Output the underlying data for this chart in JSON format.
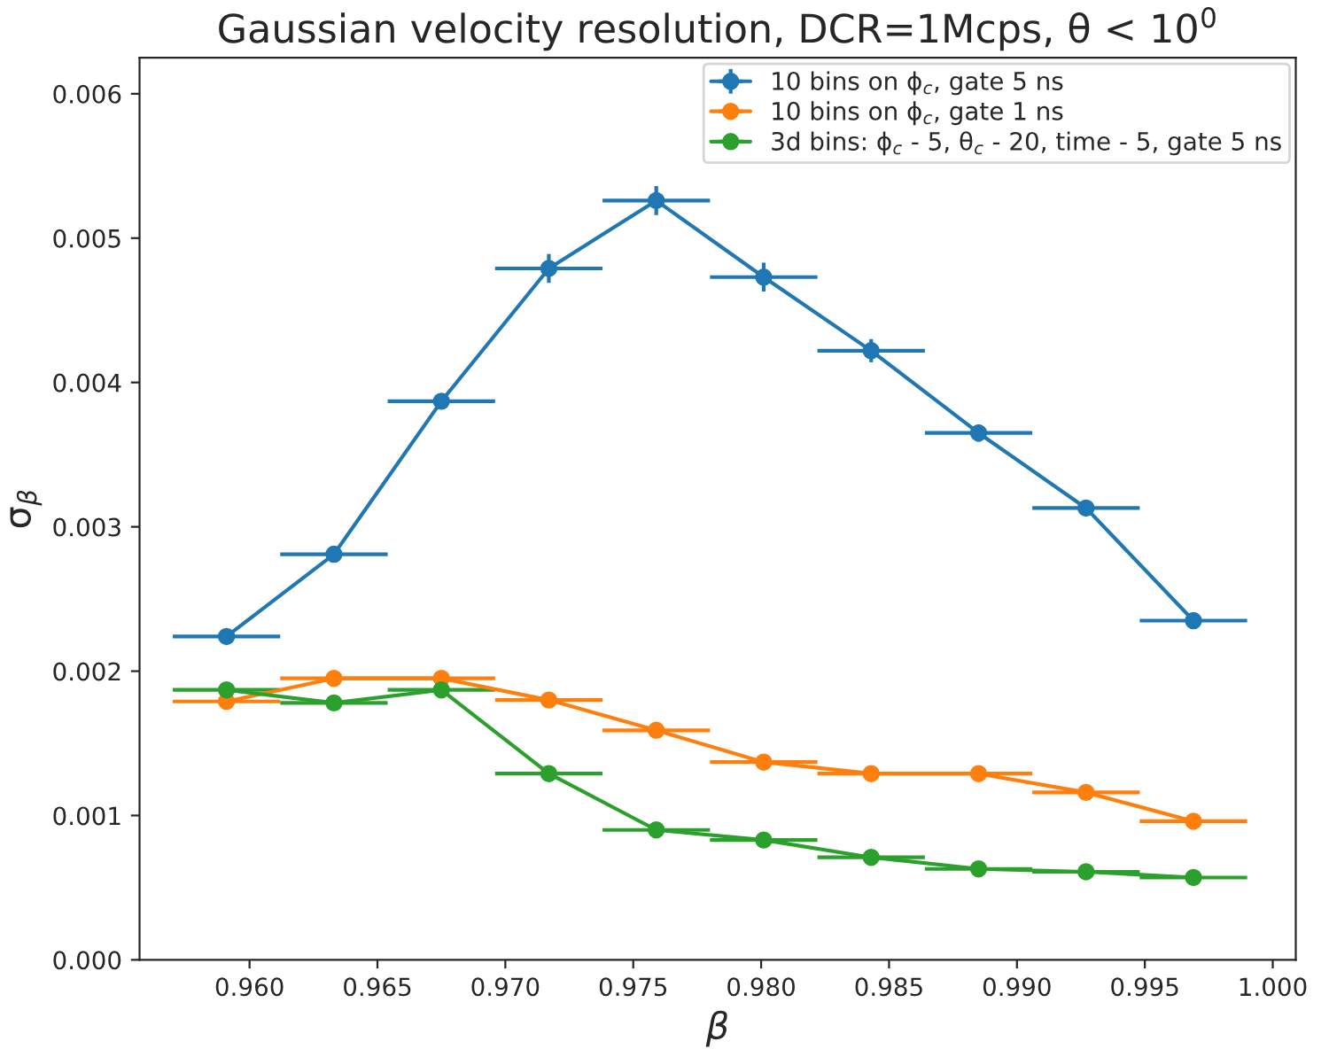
{
  "chart_data": {
    "type": "line",
    "title": "Gaussian velocity resolution, DCR=1Mcps, θ < 10$^{0}$",
    "xlabel": "β",
    "ylabel": "σ$_{β}$",
    "x": [
      0.9591,
      0.9633,
      0.9675,
      0.9717,
      0.9759,
      0.9801,
      0.9843,
      0.9885,
      0.9927,
      0.9969
    ],
    "series": [
      {
        "name": "10 bins on ϕ$_{c}$, gate 5 ns",
        "color": "#1f77b4",
        "values": [
          0.00224,
          0.00281,
          0.00387,
          0.00479,
          0.00526,
          0.00473,
          0.00422,
          0.00365,
          0.00313,
          0.00235
        ],
        "errors": [
          null,
          3e-05,
          5e-05,
          0.0001,
          0.0001,
          0.0001,
          8e-05,
          6e-05,
          4e-05,
          null
        ],
        "xerrors": [
          0.0021,
          0.0021,
          0.0021,
          0.0021,
          0.0021,
          0.0021,
          0.0021,
          0.0021,
          0.0021,
          0.0021
        ]
      },
      {
        "name": "10 bins on ϕ$_{c}$, gate 1 ns",
        "color": "#ff7f0e",
        "values": [
          0.00179,
          0.00195,
          0.00195,
          0.0018,
          0.00159,
          0.00137,
          0.00129,
          0.00129,
          0.00116,
          0.00096
        ],
        "xerrors": [
          0.0021,
          0.0021,
          0.0021,
          0.0021,
          0.0021,
          0.0021,
          0.0021,
          0.0021,
          0.0021,
          0.0021
        ]
      },
      {
        "name": "3d bins: ϕ$_{c}$ - 5, θ$_{c}$ - 20, time - 5, gate 5 ns",
        "color": "#2ca02c",
        "values": [
          0.00187,
          0.00178,
          0.00187,
          0.00129,
          0.0009,
          0.00083,
          0.00071,
          0.00063,
          0.00061,
          0.00057
        ],
        "xerrors": [
          0.0021,
          0.0021,
          0.0021,
          0.0021,
          0.0021,
          0.0021,
          0.0021,
          0.0021,
          0.0021,
          0.0021
        ]
      }
    ],
    "xlim": [
      0.9557,
      1.0009
    ],
    "ylim": [
      0,
      0.00625
    ],
    "xticks": [
      {
        "value": 0.96,
        "label": "0.960"
      },
      {
        "value": 0.965,
        "label": "0.965"
      },
      {
        "value": 0.97,
        "label": "0.970"
      },
      {
        "value": 0.975,
        "label": "0.975"
      },
      {
        "value": 0.98,
        "label": "0.980"
      },
      {
        "value": 0.985,
        "label": "0.985"
      },
      {
        "value": 0.99,
        "label": "0.990"
      },
      {
        "value": 0.995,
        "label": "0.995"
      },
      {
        "value": 1.0,
        "label": "1.000"
      }
    ],
    "yticks": [
      {
        "value": 0,
        "label": "0.000"
      },
      {
        "value": 0.001,
        "label": "0.001"
      },
      {
        "value": 0.002,
        "label": "0.002"
      },
      {
        "value": 0.003,
        "label": "0.003"
      },
      {
        "value": 0.004,
        "label": "0.004"
      },
      {
        "value": 0.005,
        "label": "0.005"
      },
      {
        "value": 0.006,
        "label": "0.006"
      }
    ],
    "marker": "circle",
    "line_style": "solid",
    "legend": "top right",
    "grid": false
  }
}
